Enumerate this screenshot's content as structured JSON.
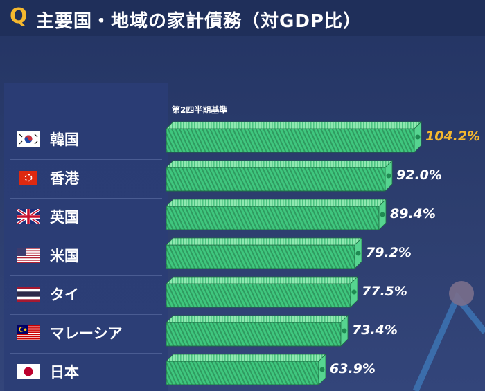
{
  "header": {
    "q_mark": "Q",
    "title": "主要国・地域の家計債務（対GDP比）"
  },
  "colors": {
    "background": "#2a3a66",
    "bar_fill": "#3fc77e",
    "highlight_value": "#f5b82e",
    "value_text": "#ffffff"
  },
  "chart_data": {
    "type": "bar",
    "orientation": "horizontal",
    "subtitle": "第2四半期基準",
    "categories": [
      "韓国",
      "香港",
      "英国",
      "米国",
      "タイ",
      "マレーシア",
      "日本"
    ],
    "values": [
      104.2,
      92.0,
      89.4,
      79.2,
      77.5,
      73.4,
      63.9
    ],
    "value_labels": [
      "104.2%",
      "92.0%",
      "89.4%",
      "79.2%",
      "77.5%",
      "73.4%",
      "63.9%"
    ],
    "flags": [
      "korea-flag-icon",
      "hongkong-flag-icon",
      "uk-flag-icon",
      "us-flag-icon",
      "thailand-flag-icon",
      "malaysia-flag-icon",
      "japan-flag-icon"
    ],
    "highlight_index": 0,
    "xlim": [
      0,
      104.2
    ],
    "xlabel": "",
    "ylabel": "",
    "grid": false
  }
}
